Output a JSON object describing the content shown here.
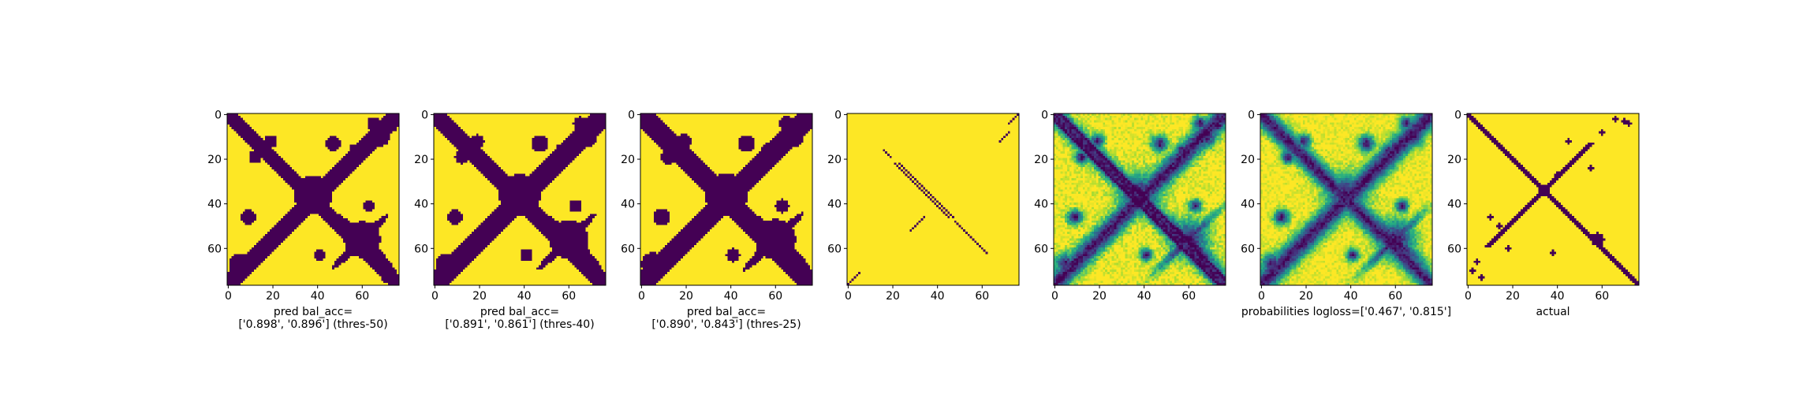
{
  "chart_data": [
    {
      "type": "heatmap",
      "title": "",
      "xlabel": "pred bal_acc=\n['0.898', '0.896'] (thres-50)",
      "ylabel": "",
      "xlim": [
        0,
        77
      ],
      "ylim": [
        77,
        0
      ],
      "xticks": [
        0,
        20,
        40,
        60
      ],
      "yticks": [
        0,
        20,
        40,
        60
      ],
      "colormap": "viridis",
      "colors": {
        "low": "#440154",
        "high": "#fde725"
      },
      "grid": false,
      "content": "binary prediction matrix"
    },
    {
      "type": "heatmap",
      "title": "",
      "xlabel": "pred bal_acc=\n['0.891', '0.861'] (thres-40)",
      "ylabel": "",
      "xlim": [
        0,
        77
      ],
      "ylim": [
        77,
        0
      ],
      "xticks": [
        0,
        20,
        40,
        60
      ],
      "yticks": [
        0,
        20,
        40,
        60
      ],
      "colormap": "viridis",
      "colors": {
        "low": "#440154",
        "high": "#fde725"
      },
      "grid": false,
      "content": "binary prediction matrix"
    },
    {
      "type": "heatmap",
      "title": "",
      "xlabel": "pred bal_acc=\n['0.890', '0.843'] (thres-25)",
      "ylabel": "",
      "xlim": [
        0,
        77
      ],
      "ylim": [
        77,
        0
      ],
      "xticks": [
        0,
        20,
        40,
        60
      ],
      "yticks": [
        0,
        20,
        40,
        60
      ],
      "colormap": "viridis",
      "colors": {
        "low": "#440154",
        "high": "#fde725"
      },
      "grid": false,
      "content": "binary prediction matrix"
    },
    {
      "type": "heatmap",
      "title": "",
      "xlabel": "",
      "ylabel": "",
      "xlim": [
        0,
        77
      ],
      "ylim": [
        77,
        0
      ],
      "xticks": [
        0,
        20,
        40,
        60
      ],
      "yticks": [
        0,
        20,
        40,
        60
      ],
      "colormap": "viridis",
      "colors": {
        "low": "#440154",
        "high": "#fde725"
      },
      "grid": false,
      "content": "sparse diagonal segments"
    },
    {
      "type": "heatmap",
      "title": "",
      "xlabel": "",
      "ylabel": "",
      "xlim": [
        0,
        77
      ],
      "ylim": [
        77,
        0
      ],
      "xticks": [
        0,
        20,
        40,
        60
      ],
      "yticks": [
        0,
        20,
        40,
        60
      ],
      "colormap": "viridis",
      "colors": {
        "low": "#440154",
        "mid": "#21918c",
        "high": "#fde725"
      },
      "grid": false,
      "content": "continuous probability map"
    },
    {
      "type": "heatmap",
      "title": "",
      "xlabel": "probabilities logloss=['0.467', '0.815']",
      "ylabel": "",
      "xlim": [
        0,
        77
      ],
      "ylim": [
        77,
        0
      ],
      "xticks": [
        0,
        20,
        40,
        60
      ],
      "yticks": [
        0,
        20,
        40,
        60
      ],
      "colormap": "viridis",
      "colors": {
        "low": "#440154",
        "mid": "#21918c",
        "high": "#fde725"
      },
      "grid": false,
      "content": "continuous probability map"
    },
    {
      "type": "heatmap",
      "title": "",
      "xlabel": "actual",
      "ylabel": "",
      "xlim": [
        0,
        77
      ],
      "ylim": [
        77,
        0
      ],
      "xticks": [
        0,
        20,
        40,
        60
      ],
      "yticks": [
        0,
        20,
        40,
        60
      ],
      "colormap": "viridis",
      "colors": {
        "low": "#440154",
        "high": "#fde725"
      },
      "grid": false,
      "content": "binary contact map"
    }
  ]
}
